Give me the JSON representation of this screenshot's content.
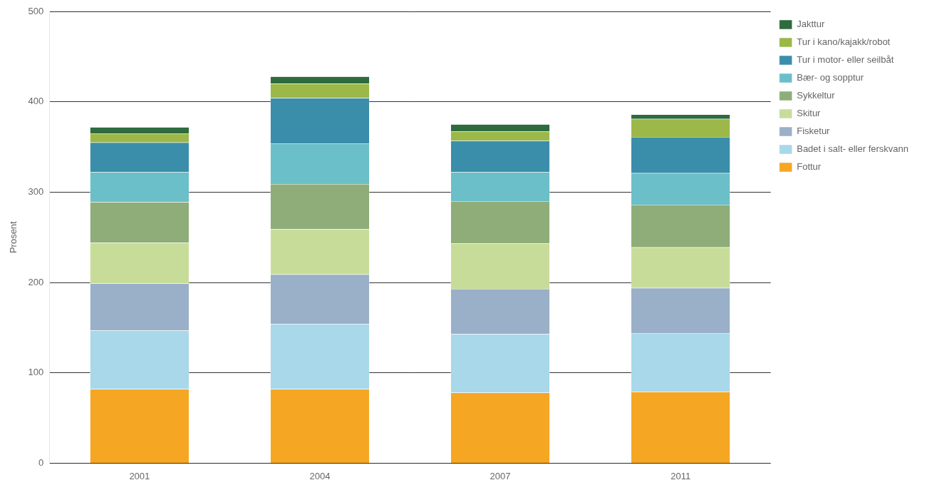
{
  "chart_data": {
    "type": "bar",
    "stacked": true,
    "categories": [
      "2001",
      "2004",
      "2007",
      "2011"
    ],
    "series": [
      {
        "name": "Fottur",
        "color": "#F5A623",
        "values": [
          82,
          82,
          78,
          79
        ]
      },
      {
        "name": "Badet i salt- eller ferskvann",
        "color": "#A8D8EA",
        "values": [
          65,
          72,
          65,
          65
        ]
      },
      {
        "name": "Fisketur",
        "color": "#9AAFC8",
        "values": [
          52,
          55,
          50,
          50
        ]
      },
      {
        "name": "Skitur",
        "color": "#C8DC9A",
        "values": [
          45,
          50,
          50,
          45
        ]
      },
      {
        "name": "Sykkeltur",
        "color": "#8EAD78",
        "values": [
          45,
          50,
          47,
          47
        ]
      },
      {
        "name": "Bær- og sopptur",
        "color": "#6BBFC8",
        "values": [
          33,
          45,
          32,
          35
        ]
      },
      {
        "name": "Tur i motor- eller seilbåt",
        "color": "#3A8EAA",
        "values": [
          33,
          50,
          35,
          40
        ]
      },
      {
        "name": "Tur i kano/kajakk/robot",
        "color": "#9BB848",
        "values": [
          10,
          16,
          10,
          20
        ]
      },
      {
        "name": "Jakttur",
        "color": "#2E6B3E",
        "values": [
          7,
          8,
          8,
          5
        ]
      }
    ],
    "ylabel": "Prosent",
    "ylim": [
      0,
      500
    ],
    "yticks": [
      0,
      100,
      200,
      300,
      400,
      500
    ],
    "grid": true,
    "legend": "right"
  }
}
